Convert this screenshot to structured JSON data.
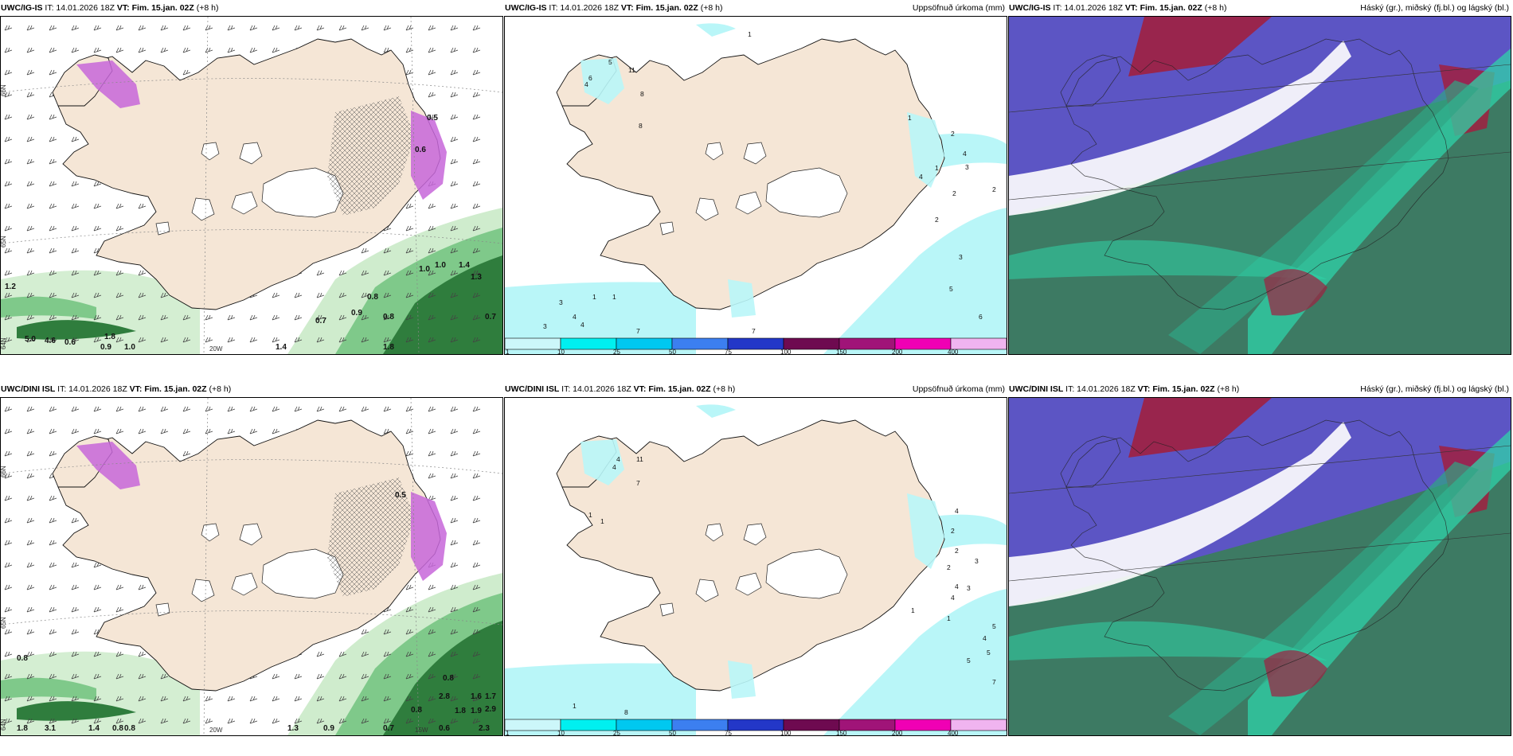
{
  "panels": [
    {
      "model": "UWC/IG-IS",
      "it_label": "IT: 14.01.2026 18Z",
      "vt_label": "VT: Fim. 15.jan. 02Z",
      "lead": "(+8 h)",
      "product": ""
    },
    {
      "model": "UWC/IG-IS",
      "it_label": "IT: 14.01.2026 18Z",
      "vt_label": "VT: Fim. 15.jan. 02Z",
      "lead": "(+8 h)",
      "product": "Uppsöfnuð úrkoma (mm)"
    },
    {
      "model": "UWC/IG-IS",
      "it_label": "IT: 14.01.2026 18Z",
      "vt_label": "VT: Fim. 15.jan. 02Z",
      "lead": "(+8 h)",
      "product": "Háský (gr.), miðský (fj.bl.) og lágský (bl.)"
    },
    {
      "model": "UWC/DINI ISL",
      "it_label": "IT: 14.01.2026 18Z",
      "vt_label": "VT: Fim. 15.jan. 02Z",
      "lead": "(+8 h)",
      "product": ""
    },
    {
      "model": "UWC/DINI ISL",
      "it_label": "IT: 14.01.2026 18Z",
      "vt_label": "VT: Fim. 15.jan. 02Z",
      "lead": "(+8 h)",
      "product": "Uppsöfnuð úrkoma (mm)"
    },
    {
      "model": "UWC/DINI ISL",
      "it_label": "IT: 14.01.2026 18Z",
      "vt_label": "VT: Fim. 15.jan. 02Z",
      "lead": "(+8 h)",
      "product": "Háský (gr.), miðský (fj.bl.) og lágský (bl.)"
    }
  ],
  "grid_labels": {
    "lat66": "66N",
    "lat65": "65N",
    "lat64": "64N",
    "lon20": "20W",
    "lon15": "15W"
  },
  "colorbar": {
    "ticks": [
      "1",
      "10",
      "25",
      "50",
      "75",
      "100",
      "150",
      "200",
      "400"
    ],
    "colors": [
      "#ccf7fa",
      "#00f0f0",
      "#00c8f0",
      "#3c7ff0",
      "#2337c8",
      "#6e0a50",
      "#a01478",
      "#f000b4",
      "#f0b4f0"
    ]
  },
  "precip_labels_top": [
    "1",
    "5",
    "6",
    "4",
    "11",
    "8",
    "8",
    "1",
    "2",
    "4",
    "3",
    "1",
    "4",
    "2",
    "2",
    "3",
    "5",
    "6",
    "7",
    "7",
    "1",
    "1",
    "3",
    "4",
    "4",
    "3",
    "2"
  ],
  "precip_labels_bottom": [
    "4",
    "4",
    "11",
    "7",
    "1",
    "1",
    "4",
    "2",
    "2",
    "3",
    "2",
    "4",
    "4",
    "3",
    "1",
    "5",
    "4",
    "5",
    "5",
    "7",
    "1",
    "8",
    "1"
  ],
  "wind_labels_top": [
    "1.2",
    "0.5",
    "0.6",
    "1.0",
    "1.0",
    "1.4",
    "1.3",
    "0.8",
    "0.9",
    "0.7",
    "0.8",
    "1.8",
    "1.0",
    "0.9",
    "1.4",
    "1.8",
    "0.7",
    "0.6",
    "4.6",
    "5.0"
  ],
  "wind_labels_bottom": [
    "0.5",
    "0.8",
    "0.8",
    "1.6",
    "1.7",
    "2.9",
    "2.8",
    "1.8",
    "1.9",
    "2.3",
    "0.8",
    "0.6",
    "0.7",
    "0.9",
    "1.3",
    "1.4",
    "3.1",
    "1.8",
    "0.8",
    "0.8"
  ],
  "colors": {
    "land": "#f5e6d6",
    "ice": "#ffffff",
    "sea": "#ffffff",
    "snow": "#c766d9",
    "precip_light": "#b9f6f8",
    "green_light": "#cfeccd",
    "green_mid": "#7fc98a",
    "green_dark": "#2f7d3d",
    "cloud_high": "#5c55c4",
    "cloud_mid": "#2fa585",
    "cloud_low": "#3d7a63",
    "cloud_red": "#a02040",
    "cloud_teal": "#2fd3a8"
  }
}
